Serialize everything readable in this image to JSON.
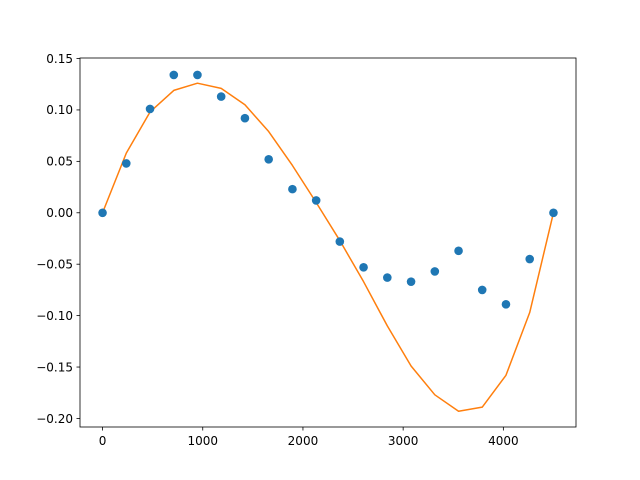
{
  "chart_data": {
    "type": "scatter",
    "title": "",
    "xlabel": "",
    "ylabel": "",
    "xlim": [
      -225,
      4725
    ],
    "ylim": [
      -0.2083,
      0.1505
    ],
    "x_ticks": [
      0,
      1000,
      2000,
      3000,
      4000
    ],
    "x_tick_labels": [
      "0",
      "1000",
      "2000",
      "3000",
      "4000"
    ],
    "y_ticks": [
      0.15,
      0.1,
      0.05,
      0.0,
      -0.05,
      -0.1,
      -0.15,
      -0.2
    ],
    "y_tick_labels": [
      "0.15",
      "0.10",
      "0.05",
      "0.00",
      "−0.05",
      "−0.10",
      "−0.15",
      "−0.20"
    ],
    "grid": false,
    "series": [
      {
        "kind": "scatter",
        "color": "#1f77b4",
        "x": [
          0,
          237,
          474,
          711,
          947,
          1184,
          1421,
          1658,
          1895,
          2132,
          2368,
          2605,
          2842,
          3079,
          3316,
          3553,
          3789,
          4026,
          4263,
          4500
        ],
        "y": [
          0.0,
          0.048,
          0.101,
          0.134,
          0.134,
          0.113,
          0.092,
          0.052,
          0.023,
          0.012,
          -0.028,
          -0.053,
          -0.063,
          -0.067,
          -0.057,
          -0.037,
          -0.075,
          -0.089,
          -0.045,
          0.0
        ]
      },
      {
        "kind": "line",
        "color": "#ff7f0e",
        "x": [
          0,
          237,
          474,
          711,
          947,
          1184,
          1421,
          1658,
          1895,
          2132,
          2368,
          2605,
          2842,
          3079,
          3316,
          3553,
          3789,
          4026,
          4263,
          4500
        ],
        "y": [
          0.0,
          0.058,
          0.098,
          0.119,
          0.126,
          0.121,
          0.105,
          0.079,
          0.046,
          0.01,
          -0.027,
          -0.067,
          -0.11,
          -0.149,
          -0.177,
          -0.193,
          -0.189,
          -0.158,
          -0.097,
          0.0
        ]
      }
    ]
  }
}
